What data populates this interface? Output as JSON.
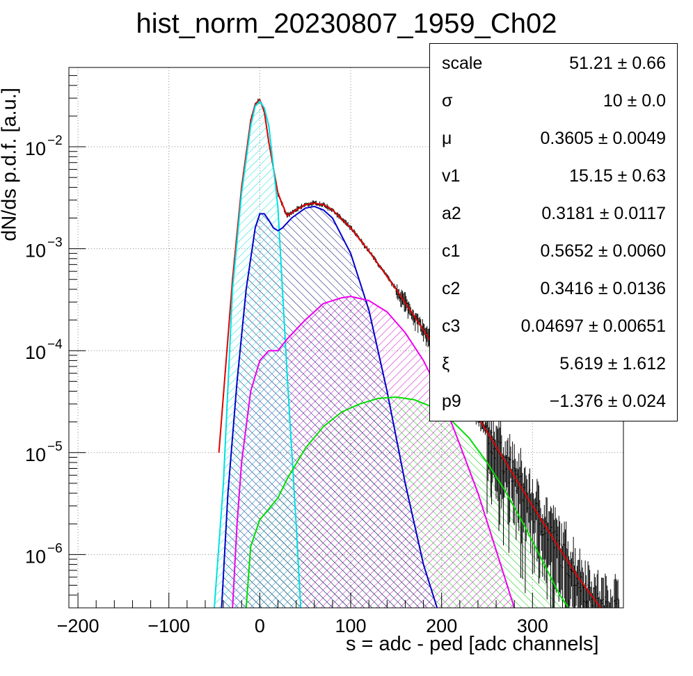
{
  "title": "hist_norm_20230807_1959_Ch02",
  "chart_data": {
    "type": "line",
    "title": "hist_norm_20230807_1959_Ch02",
    "xlabel": "s = adc - ped [adc channels]",
    "ylabel": "dN/ds p.d.f. [a.u.]",
    "xlim": [
      -210,
      400
    ],
    "ylim": [
      3e-07,
      0.06
    ],
    "yscale": "log",
    "grid": true,
    "x_ticks": [
      -200,
      -100,
      0,
      100,
      200,
      300
    ],
    "x_tick_labels": [
      "−200",
      "−100",
      "0",
      "100",
      "200",
      "300"
    ],
    "y_ticks": [
      1e-06,
      1e-05,
      0.0001,
      0.001,
      0.01
    ],
    "y_tick_labels": [
      {
        "base": "10",
        "exp": "−6"
      },
      {
        "base": "10",
        "exp": "−5"
      },
      {
        "base": "10",
        "exp": "−4"
      },
      {
        "base": "10",
        "exp": "−3"
      },
      {
        "base": "10",
        "exp": "−2"
      }
    ],
    "colors": {
      "data": "#000000",
      "total": "#e00000",
      "pedestal": "#00e0e0",
      "pe1": "#0000cc",
      "pe2": "#ee00ee",
      "pe3": "#00dd00"
    },
    "series": [
      {
        "id": "total",
        "color": "#e00000",
        "x": [
          -45,
          -30,
          -20,
          -10,
          -5,
          0,
          5,
          10,
          20,
          30,
          40,
          50,
          60,
          70,
          80,
          100,
          120,
          150,
          180,
          210,
          250,
          300,
          350,
          375
        ],
        "y": [
          1e-05,
          0.0005,
          0.004,
          0.018,
          0.026,
          0.029,
          0.022,
          0.011,
          0.0035,
          0.0021,
          0.0024,
          0.0027,
          0.0028,
          0.0027,
          0.0024,
          0.0016,
          0.00095,
          0.0004,
          0.00016,
          6e-05,
          1.6e-05,
          3e-06,
          6e-07,
          3e-07
        ]
      },
      {
        "id": "pedestal",
        "color": "#00e0e0",
        "x": [
          -50,
          -40,
          -30,
          -20,
          -10,
          -5,
          0,
          5,
          10,
          20,
          30,
          40,
          45
        ],
        "y": [
          3e-07,
          5e-06,
          0.0004,
          0.0035,
          0.016,
          0.025,
          0.028,
          0.024,
          0.016,
          0.0025,
          6e-05,
          2e-06,
          3e-07
        ]
      },
      {
        "id": "pe1",
        "color": "#0000cc",
        "x": [
          -42,
          -35,
          -25,
          -15,
          -5,
          0,
          5,
          10,
          15,
          20,
          25,
          35,
          50,
          60,
          70,
          80,
          100,
          120,
          140,
          160,
          180,
          195
        ],
        "y": [
          3e-07,
          4e-06,
          5e-05,
          0.0004,
          0.0016,
          0.0022,
          0.0022,
          0.0019,
          0.0016,
          0.0015,
          0.0016,
          0.002,
          0.0025,
          0.0026,
          0.0024,
          0.002,
          0.0009,
          0.00025,
          4e-05,
          5e-06,
          8e-07,
          3e-07
        ]
      },
      {
        "id": "pe2",
        "color": "#ee00ee",
        "x": [
          -30,
          -25,
          -20,
          -10,
          0,
          10,
          20,
          30,
          50,
          70,
          90,
          100,
          120,
          140,
          160,
          180,
          200,
          220,
          240,
          260,
          280
        ],
        "y": [
          3e-07,
          2e-06,
          8e-06,
          4e-05,
          8e-05,
          0.0001,
          0.0001,
          0.00013,
          0.0002,
          0.00029,
          0.00033,
          0.00034,
          0.00031,
          0.00024,
          0.00015,
          8e-05,
          3.5e-05,
          1.2e-05,
          4e-06,
          1.1e-06,
          3e-07
        ]
      },
      {
        "id": "pe3",
        "color": "#00dd00",
        "x": [
          -15,
          -10,
          0,
          10,
          20,
          30,
          50,
          70,
          90,
          110,
          130,
          150,
          170,
          190,
          210,
          230,
          250,
          270,
          290,
          310,
          330,
          340
        ],
        "y": [
          3e-07,
          1.2e-06,
          2.2e-06,
          2.8e-06,
          3.6e-06,
          5.5e-06,
          1.1e-05,
          1.8e-05,
          2.5e-05,
          3e-05,
          3.4e-05,
          3.5e-05,
          3.3e-05,
          2.8e-05,
          2.1e-05,
          1.4e-05,
          8e-06,
          4.2e-06,
          2e-06,
          9e-07,
          4e-07,
          3e-07
        ]
      }
    ]
  },
  "stats": {
    "rows": [
      {
        "name": "scale",
        "value": "51.21 ± 0.66"
      },
      {
        "name": "σ",
        "value": "10 ± 0.0"
      },
      {
        "name": "μ",
        "value": "0.3605 ± 0.0049"
      },
      {
        "name": "v1",
        "value": "15.15 ± 0.63"
      },
      {
        "name": "a2",
        "value": "0.3181 ± 0.0117"
      },
      {
        "name": "c1",
        "value": "0.5652 ± 0.0060"
      },
      {
        "name": "c2",
        "value": "0.3416 ± 0.0136"
      },
      {
        "name": "c3",
        "value": "0.04697 ± 0.00651"
      },
      {
        "name": "ξ",
        "value": "5.619 ± 1.612"
      },
      {
        "name": "p9",
        "value": "−1.376 ± 0.024"
      }
    ]
  }
}
